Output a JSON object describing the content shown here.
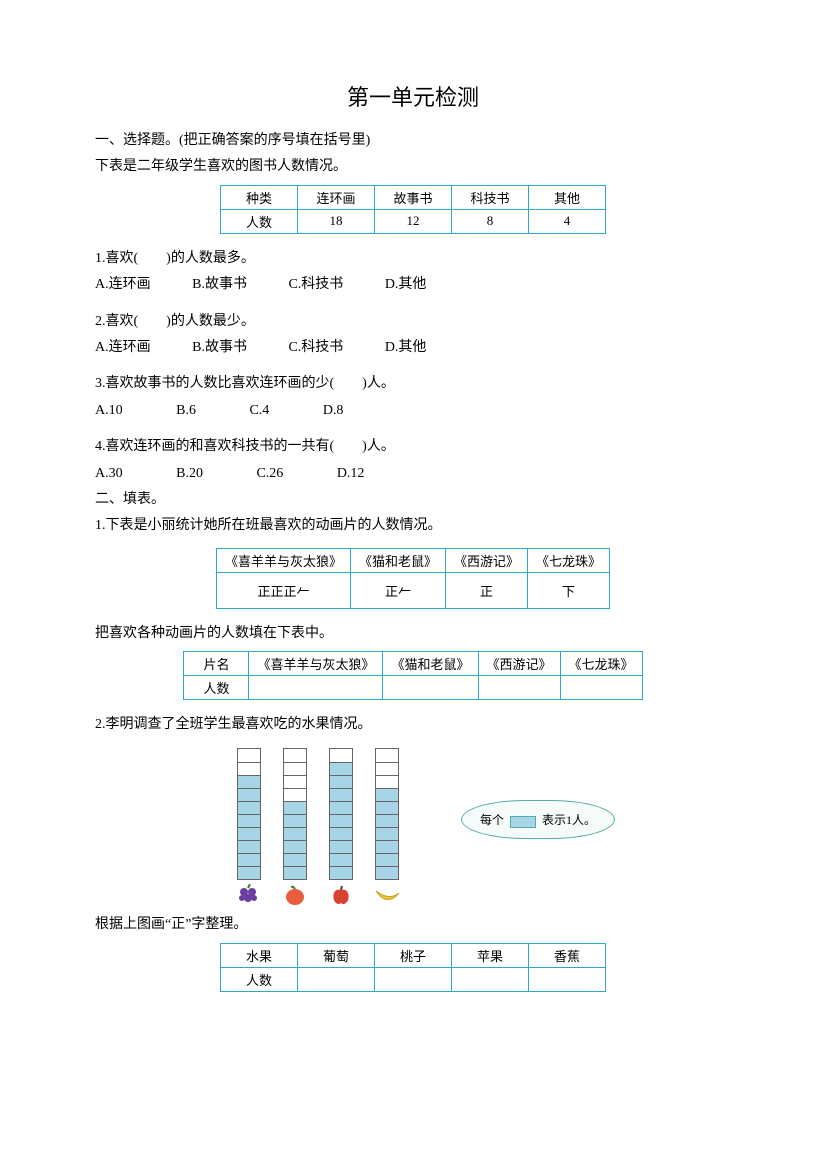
{
  "title": "第一单元检测",
  "sec1": {
    "heading": "一、选择题。(把正确答案的序号填在括号里)",
    "intro": "下表是二年级学生喜欢的图书人数情况。",
    "table": {
      "h0": "种类",
      "h1": "连环画",
      "h2": "故事书",
      "h3": "科技书",
      "h4": "其他",
      "r0": "人数",
      "r1": "18",
      "r2": "12",
      "r3": "8",
      "r4": "4"
    },
    "q1": "1.喜欢(　　)的人数最多。",
    "q1opts": {
      "a": "A.连环画",
      "b": "B.故事书",
      "c": "C.科技书",
      "d": "D.其他"
    },
    "q2": "2.喜欢(　　)的人数最少。",
    "q2opts": {
      "a": "A.连环画",
      "b": "B.故事书",
      "c": "C.科技书",
      "d": "D.其他"
    },
    "q3": "3.喜欢故事书的人数比喜欢连环画的少(　　)人。",
    "q3opts": {
      "a": "A.10",
      "b": "B.6",
      "c": "C.4",
      "d": "D.8"
    },
    "q4": "4.喜欢连环画的和喜欢科技书的一共有(　　)人。",
    "q4opts": {
      "a": "A.30",
      "b": "B.20",
      "c": "C.26",
      "d": "D.12"
    }
  },
  "sec2": {
    "heading": "二、填表。",
    "p1intro": "1.下表是小丽统计她所在班最喜欢的动画片的人数情况。",
    "tally": {
      "h1": "《喜羊羊与灰太狼》",
      "h2": "《猫和老鼠》",
      "h3": "《西游记》",
      "h4": "《七龙珠》",
      "v1": "正正正𠂉",
      "v2": "正𠂉",
      "v3": "正",
      "v4": "下"
    },
    "p1fill": "把喜欢各种动画片的人数填在下表中。",
    "fill": {
      "h0": "片名",
      "h1": "《喜羊羊与灰太狼》",
      "h2": "《猫和老鼠》",
      "h3": "《西游记》",
      "h4": "《七龙珠》",
      "r0": "人数"
    },
    "p2intro": "2.李明调查了全班学生最喜欢吃的水果情况。",
    "chart": {
      "max_cells": 10,
      "bars": [
        8,
        6,
        9,
        7
      ],
      "fruits": [
        "葡萄",
        "桃子",
        "苹果",
        "香蕉"
      ],
      "fruit_colors": [
        "#6b3fa0",
        "#e85d3c",
        "#d84030",
        "#f0c93a"
      ],
      "filled_color": "#a8d4e8",
      "border_color": "#666"
    },
    "legend_pre": "每个",
    "legend_post": "表示1人。",
    "p2fill": "根据上图画“正”字整理。",
    "fruit_table": {
      "h0": "水果",
      "h1": "葡萄",
      "h2": "桃子",
      "h3": "苹果",
      "h4": "香蕉",
      "r0": "人数"
    }
  }
}
